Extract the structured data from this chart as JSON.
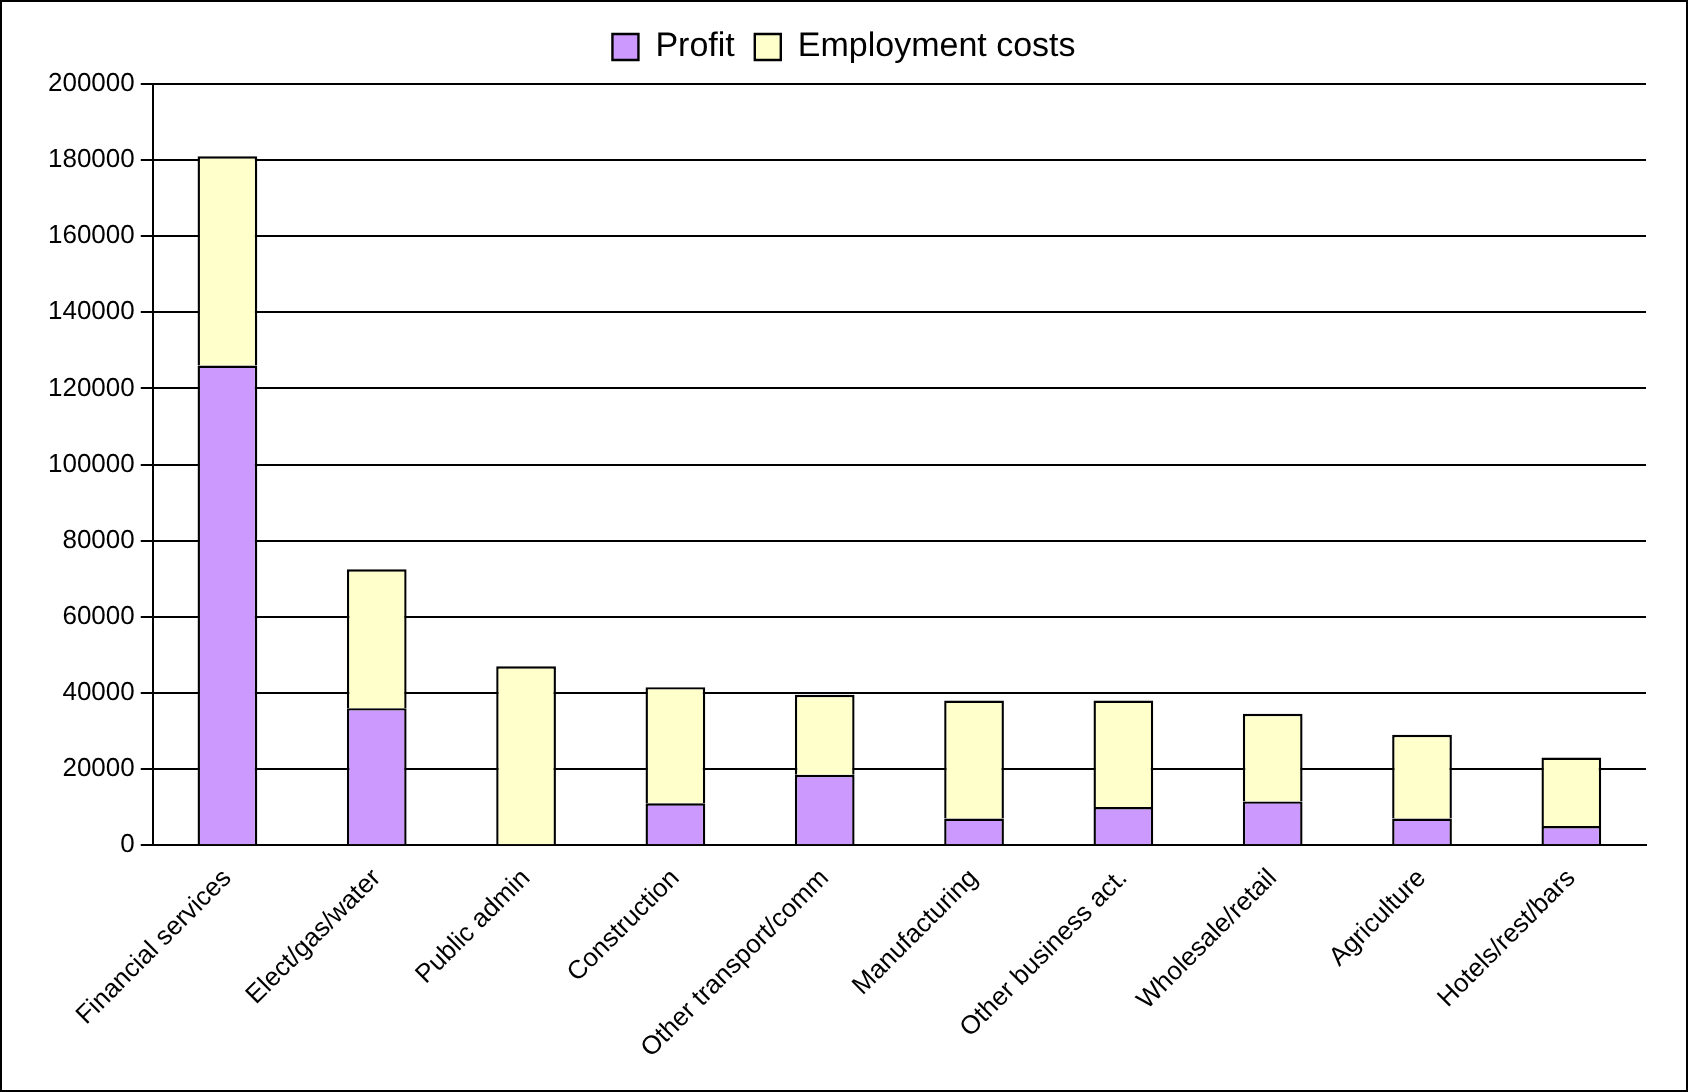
{
  "chart_data": {
    "type": "bar",
    "stacked": true,
    "categories": [
      "Financial services",
      "Elect/gas/water",
      "Public admin",
      "Construction",
      "Other transport/comm",
      "Manufacturing",
      "Other business act.",
      "Wholesale/retail",
      "Agriculture",
      "Hotels/rest/bars"
    ],
    "series": [
      {
        "name": "Profit",
        "color": "#cc99ff",
        "values": [
          126000,
          36000,
          0,
          11000,
          18500,
          7000,
          10000,
          11500,
          7000,
          5000
        ]
      },
      {
        "name": "Employment costs",
        "color": "#ffffcc",
        "values": [
          55000,
          36500,
          47000,
          30500,
          21000,
          31000,
          28000,
          23000,
          22000,
          18000
        ]
      }
    ],
    "ylim": [
      0,
      200000
    ],
    "yticks": [
      0,
      20000,
      40000,
      60000,
      80000,
      100000,
      120000,
      140000,
      160000,
      180000,
      200000
    ],
    "grid": "y",
    "legend": "top"
  }
}
